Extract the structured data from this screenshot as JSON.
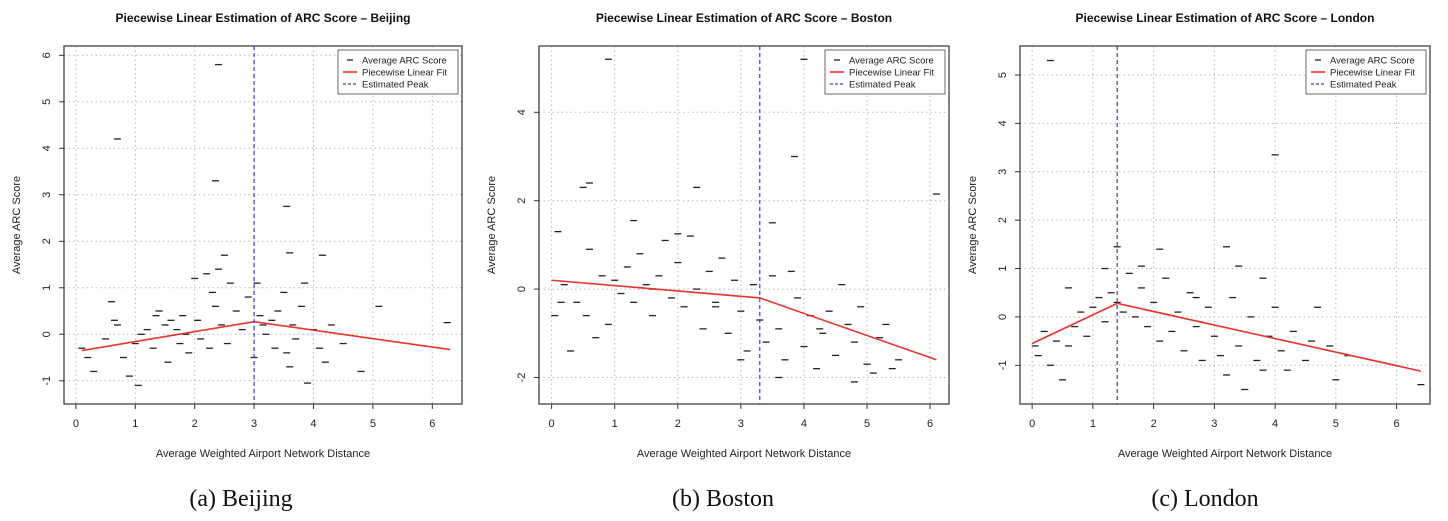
{
  "chart_data": [
    {
      "type": "scatter",
      "title": "Piecewise Linear Estimation of ARC Score – Beijing",
      "xlabel": "Average Weighted Airport Network Distance",
      "ylabel": "Average ARC Score",
      "xlim": [
        -0.2,
        6.5
      ],
      "ylim": [
        -1.5,
        6.2
      ],
      "xticks": [
        0,
        1,
        2,
        3,
        4,
        5,
        6
      ],
      "yticks": [
        -1,
        0,
        1,
        2,
        3,
        4,
        5,
        6
      ],
      "grid": true,
      "legend_position": "top-right",
      "series": [
        {
          "name": "Average ARC Score",
          "kind": "points",
          "x": [
            0.1,
            0.2,
            0.3,
            0.5,
            0.6,
            0.65,
            0.7,
            0.8,
            0.9,
            1.0,
            1.05,
            1.1,
            1.2,
            1.3,
            1.35,
            1.4,
            1.5,
            1.55,
            1.6,
            1.7,
            1.75,
            1.8,
            1.85,
            1.9,
            2.0,
            2.05,
            2.1,
            2.2,
            2.25,
            2.3,
            2.35,
            2.4,
            2.45,
            2.5,
            2.55,
            2.6,
            2.7,
            2.8,
            2.9,
            3.0,
            3.05,
            3.1,
            3.15,
            3.2,
            3.3,
            3.35,
            3.4,
            3.5,
            3.55,
            3.6,
            3.65,
            3.7,
            3.8,
            3.85,
            3.9,
            4.0,
            4.1,
            4.2,
            4.3,
            4.5,
            4.8,
            5.1,
            6.25,
            0.7,
            2.4,
            2.35,
            3.55,
            4.15,
            3.6
          ],
          "y": [
            -0.3,
            -0.5,
            -0.8,
            -0.1,
            0.7,
            0.3,
            0.2,
            -0.5,
            -0.9,
            -0.2,
            -1.1,
            0.0,
            0.1,
            -0.3,
            0.4,
            0.5,
            0.2,
            -0.6,
            0.3,
            0.1,
            -0.2,
            0.4,
            0.0,
            -0.4,
            1.2,
            0.3,
            -0.1,
            1.3,
            -0.3,
            0.9,
            0.6,
            1.4,
            0.2,
            1.7,
            -0.2,
            1.1,
            0.5,
            0.1,
            0.8,
            -0.5,
            1.1,
            0.4,
            0.2,
            0.0,
            0.3,
            -0.3,
            0.5,
            0.9,
            -0.4,
            1.75,
            0.2,
            -0.1,
            0.6,
            1.1,
            -1.05,
            0.1,
            -0.3,
            -0.6,
            0.2,
            -0.2,
            -0.8,
            0.6,
            0.25,
            4.2,
            5.8,
            3.3,
            2.75,
            1.7,
            -0.7
          ]
        },
        {
          "name": "Piecewise Linear Fit",
          "kind": "line",
          "x": [
            0.1,
            3.0,
            6.3
          ],
          "y": [
            -0.35,
            0.27,
            -0.33
          ]
        },
        {
          "name": "Estimated Peak",
          "kind": "vline",
          "x": [
            3.0
          ]
        }
      ]
    },
    {
      "type": "scatter",
      "title": "Piecewise Linear Estimation of ARC Score – Boston",
      "xlabel": "Average Weighted Airport Network Distance",
      "ylabel": "Average ARC Score",
      "xlim": [
        -0.2,
        6.3
      ],
      "ylim": [
        -2.6,
        5.5
      ],
      "xticks": [
        0,
        1,
        2,
        3,
        4,
        5,
        6
      ],
      "yticks": [
        -2,
        0,
        2,
        4
      ],
      "grid": true,
      "legend_position": "top-right",
      "series": [
        {
          "name": "Average ARC Score",
          "kind": "points",
          "x": [
            0.05,
            0.1,
            0.2,
            0.3,
            0.4,
            0.5,
            0.6,
            0.7,
            0.8,
            0.9,
            1.0,
            1.1,
            1.2,
            1.3,
            1.4,
            1.5,
            1.6,
            1.7,
            1.8,
            1.9,
            2.0,
            2.1,
            2.2,
            2.3,
            2.4,
            2.5,
            2.6,
            2.7,
            2.8,
            2.9,
            3.0,
            3.1,
            3.2,
            3.3,
            3.4,
            3.5,
            3.6,
            3.7,
            3.8,
            3.9,
            4.0,
            4.1,
            4.2,
            4.3,
            4.4,
            4.5,
            4.6,
            4.7,
            4.8,
            4.9,
            5.0,
            5.2,
            5.3,
            5.5,
            6.1,
            0.6,
            0.9,
            1.3,
            2.0,
            2.3,
            3.5,
            3.85,
            4.0,
            0.15,
            0.55,
            1.6,
            2.6,
            3.0,
            3.6,
            4.25,
            4.8,
            5.1,
            5.4
          ],
          "y": [
            -0.6,
            1.3,
            0.1,
            -1.4,
            -0.3,
            2.3,
            0.9,
            -1.1,
            0.3,
            -0.8,
            0.2,
            -0.1,
            0.5,
            -0.3,
            0.8,
            0.1,
            -0.6,
            0.3,
            1.1,
            -0.2,
            0.6,
            -0.4,
            1.2,
            0.0,
            -0.9,
            0.4,
            -0.3,
            0.7,
            -1.0,
            0.2,
            -0.5,
            -1.4,
            0.1,
            -0.7,
            -1.2,
            0.3,
            -0.9,
            -1.6,
            0.4,
            -0.2,
            -1.3,
            -0.6,
            -1.8,
            -1.0,
            -0.5,
            -1.5,
            0.1,
            -0.8,
            -1.2,
            -0.4,
            -1.7,
            -1.1,
            -0.8,
            -1.6,
            2.15,
            2.4,
            5.2,
            1.55,
            1.25,
            2.3,
            1.5,
            3.0,
            5.2,
            -0.3,
            -0.6,
            0.0,
            -0.4,
            -1.6,
            -2.0,
            -0.9,
            -2.1,
            -1.9,
            -1.8
          ]
        },
        {
          "name": "Piecewise Linear Fit",
          "kind": "line",
          "x": [
            0.0,
            3.3,
            6.1
          ],
          "y": [
            0.2,
            -0.2,
            -1.6
          ]
        },
        {
          "name": "Estimated Peak",
          "kind": "vline",
          "x": [
            3.3
          ]
        }
      ]
    },
    {
      "type": "scatter",
      "title": "Piecewise Linear Estimation of ARC Score – London",
      "xlabel": "Average Weighted Airport Network Distance",
      "ylabel": "Average ARC Score",
      "xlim": [
        -0.2,
        6.55
      ],
      "ylim": [
        -1.8,
        5.6
      ],
      "xticks": [
        0,
        1,
        2,
        3,
        4,
        5,
        6
      ],
      "yticks": [
        -1,
        0,
        1,
        2,
        3,
        4,
        5
      ],
      "grid": true,
      "legend_position": "top-right",
      "series": [
        {
          "name": "Average ARC Score",
          "kind": "points",
          "x": [
            0.05,
            0.1,
            0.2,
            0.3,
            0.4,
            0.5,
            0.6,
            0.7,
            0.8,
            0.9,
            1.0,
            1.1,
            1.2,
            1.3,
            1.4,
            1.5,
            1.6,
            1.7,
            1.8,
            1.9,
            2.0,
            2.1,
            2.2,
            2.3,
            2.4,
            2.5,
            2.6,
            2.7,
            2.8,
            2.9,
            3.0,
            3.1,
            3.2,
            3.3,
            3.4,
            3.5,
            3.6,
            3.7,
            3.8,
            3.9,
            4.0,
            4.1,
            4.2,
            4.3,
            4.5,
            4.7,
            4.9,
            5.0,
            5.2,
            6.4,
            0.3,
            1.4,
            2.1,
            3.2,
            4.0,
            0.6,
            1.2,
            1.8,
            2.7,
            3.4,
            3.8,
            4.6
          ],
          "y": [
            -0.6,
            -0.8,
            -0.3,
            -1.0,
            -0.5,
            -1.3,
            -0.6,
            -0.2,
            0.1,
            -0.4,
            0.2,
            0.4,
            -0.1,
            0.5,
            0.3,
            0.1,
            0.9,
            0.0,
            0.6,
            -0.2,
            0.3,
            -0.5,
            0.8,
            -0.3,
            0.1,
            -0.7,
            0.5,
            -0.2,
            -0.9,
            0.2,
            -0.4,
            -0.8,
            -1.2,
            0.4,
            -0.6,
            -1.5,
            0.0,
            -0.9,
            -1.1,
            -0.4,
            0.2,
            -0.7,
            -1.1,
            -0.3,
            -0.9,
            0.2,
            -0.6,
            -1.3,
            -0.8,
            -1.4,
            5.3,
            1.45,
            1.4,
            1.45,
            3.35,
            0.6,
            1.0,
            1.05,
            0.4,
            1.05,
            0.8,
            -0.5
          ]
        },
        {
          "name": "Piecewise Linear Fit",
          "kind": "line",
          "x": [
            0.0,
            1.4,
            6.4
          ],
          "y": [
            -0.55,
            0.28,
            -1.12
          ]
        },
        {
          "name": "Estimated Peak",
          "kind": "vline",
          "x": [
            1.4
          ]
        }
      ]
    }
  ],
  "captions": [
    "(a) Beijing",
    "(b) Boston",
    "(c) London"
  ],
  "colors": {
    "points": "#222222",
    "fit": "#e8342c",
    "peak": "#3b3bd6",
    "grid": "#b8b8b8",
    "axis": "#333333"
  }
}
